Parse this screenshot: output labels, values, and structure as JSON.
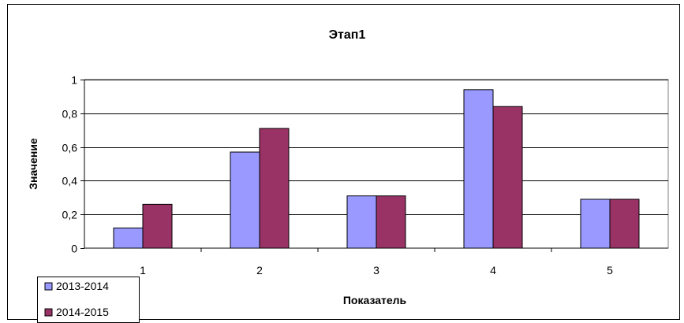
{
  "chart_data": {
    "type": "bar",
    "title": "Этап1",
    "xlabel": "Показатель",
    "ylabel": "Значение",
    "categories": [
      "1",
      "2",
      "3",
      "4",
      "5"
    ],
    "ylim": [
      0,
      1
    ],
    "yticks": [
      "0",
      "0,2",
      "0,4",
      "0,6",
      "0,8",
      "1"
    ],
    "grid": true,
    "legend_position": "bottom-left",
    "series": [
      {
        "name": "2013-2014",
        "color": "#9999ff",
        "values": [
          0.12,
          0.57,
          0.31,
          0.94,
          0.29
        ]
      },
      {
        "name": "2014-2015",
        "color": "#993366",
        "values": [
          0.26,
          0.71,
          0.31,
          0.84,
          0.29
        ]
      }
    ]
  }
}
